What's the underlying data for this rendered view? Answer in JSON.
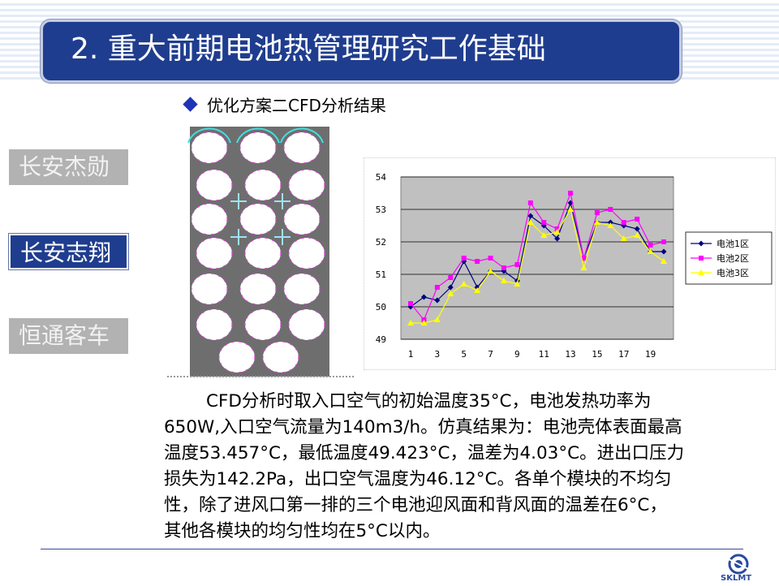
{
  "header": {
    "title": "2. 重大前期电池热管理研究工作基础"
  },
  "subheading": "优化方案二CFD分析结果",
  "sidebar": {
    "items": [
      {
        "label": "长安杰勋",
        "active": false
      },
      {
        "label": "长安志翔",
        "active": true
      },
      {
        "label": "恒通客车",
        "active": false
      }
    ]
  },
  "paragraph": {
    "lines": [
      "CFD分析时取入口空气的初始温度35°C，电池发热功率为",
      "650W,入口空气流量为140m3/h。仿真结果为：电池壳体表面最高",
      "温度53.457°C，最低温度49.423°C，温差为4.03°C。进出口压力",
      "损失为142.2Pa，出口空气温度为46.12°C。各单个模块的不均匀",
      "性，除了进风口第一排的三个电池迎风面和背风面的温差在6°C，",
      "其他各模块的均匀性均在5°C以内。"
    ]
  },
  "logo": {
    "text": "SKLMT"
  },
  "colors": {
    "title_bg": "#1f3d8f",
    "series1": "#000080",
    "series2": "#ff00ff",
    "series3": "#ffff00",
    "plot_bg": "#c0c0c0"
  },
  "chart_data": {
    "type": "line",
    "title": "",
    "xlabel": "",
    "ylabel": "",
    "x": [
      1,
      2,
      3,
      4,
      5,
      6,
      7,
      8,
      9,
      10,
      11,
      12,
      13,
      14,
      15,
      16,
      17,
      18,
      19,
      20
    ],
    "x_tick_labels": [
      "1",
      "3",
      "5",
      "7",
      "9",
      "11",
      "13",
      "15",
      "17",
      "19"
    ],
    "y_tick_labels": [
      "49",
      "50",
      "51",
      "52",
      "53",
      "54"
    ],
    "ylim": [
      49,
      54
    ],
    "grid": "horizontal",
    "legend": "right",
    "series": [
      {
        "name": "电池1区",
        "marker": "diamond",
        "values": [
          50.0,
          50.3,
          50.2,
          50.6,
          51.4,
          50.6,
          51.1,
          51.1,
          50.8,
          52.8,
          52.5,
          52.1,
          53.2,
          51.5,
          52.6,
          52.6,
          52.5,
          52.4,
          51.7,
          51.7
        ]
      },
      {
        "name": "电池2区",
        "marker": "square",
        "values": [
          50.1,
          49.6,
          50.6,
          50.9,
          51.5,
          51.4,
          51.5,
          51.2,
          51.3,
          53.2,
          52.6,
          52.4,
          53.5,
          51.5,
          52.9,
          53.0,
          52.6,
          52.7,
          51.9,
          52.0
        ]
      },
      {
        "name": "电池3区",
        "marker": "triangle",
        "values": [
          49.5,
          49.5,
          49.6,
          50.4,
          50.7,
          50.5,
          51.1,
          50.8,
          50.7,
          52.6,
          52.2,
          52.3,
          53.0,
          51.2,
          52.6,
          52.5,
          52.1,
          52.2,
          51.7,
          51.4
        ]
      }
    ]
  }
}
